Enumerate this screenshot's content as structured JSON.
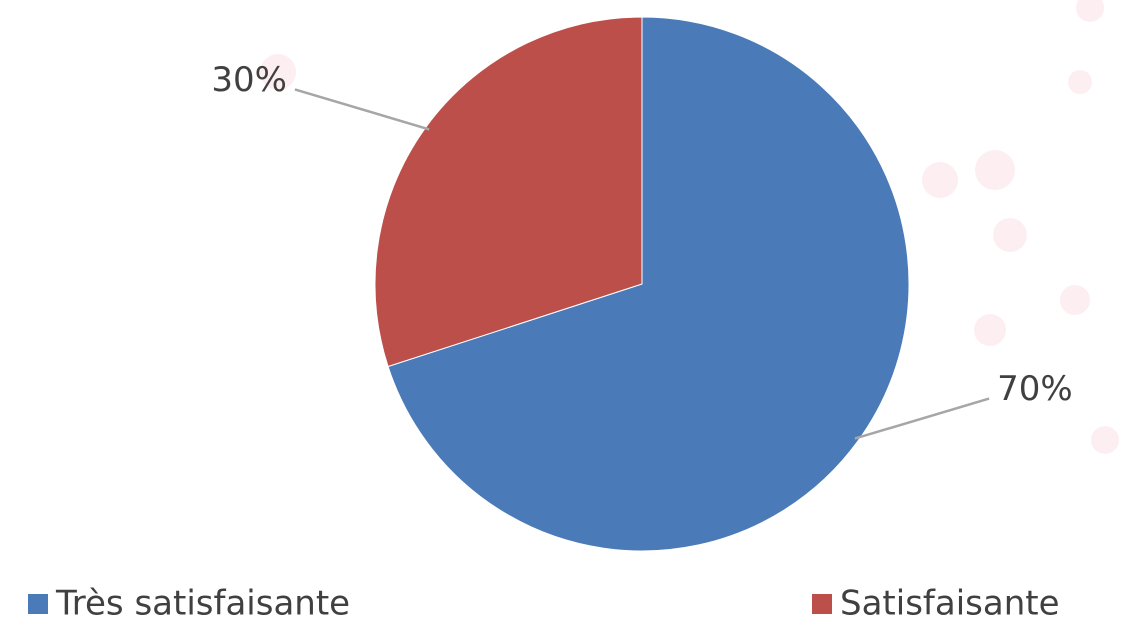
{
  "chart_data": {
    "type": "pie",
    "categories": [
      "Très satisfaisante",
      "Satisfaisante"
    ],
    "values": [
      70,
      30
    ],
    "value_labels": [
      "70%",
      "30%"
    ],
    "colors": [
      "#4a7ab7",
      "#bc4f4a"
    ]
  }
}
